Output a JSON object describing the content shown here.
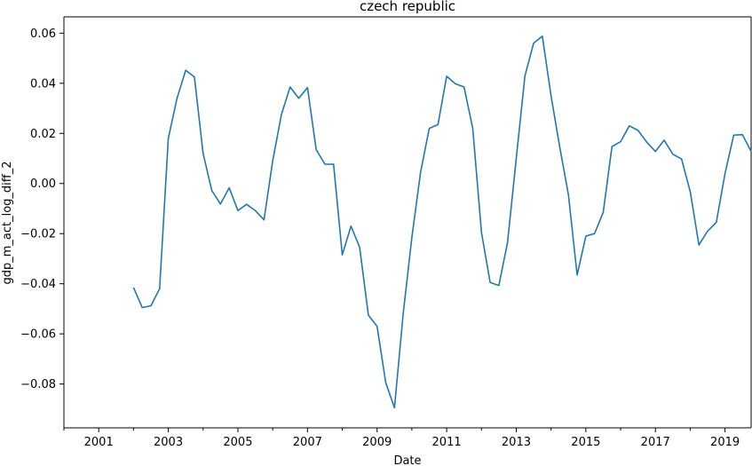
{
  "chart_data": {
    "type": "line",
    "title": "czech republic",
    "xlabel": "Date",
    "ylabel": "gdp_m_act_log_diff_2",
    "xlim": [
      2000.0,
      2019.75
    ],
    "ylim": [
      -0.0975,
      0.0665
    ],
    "grid": false,
    "legend": "none",
    "line_color": "#1f77b4",
    "x_ticks": [
      {
        "value": 2001,
        "label": "2001"
      },
      {
        "value": 2003,
        "label": "2003"
      },
      {
        "value": 2005,
        "label": "2005"
      },
      {
        "value": 2007,
        "label": "2007"
      },
      {
        "value": 2009,
        "label": "2009"
      },
      {
        "value": 2011,
        "label": "2011"
      },
      {
        "value": 2013,
        "label": "2013"
      },
      {
        "value": 2015,
        "label": "2015"
      },
      {
        "value": 2017,
        "label": "2017"
      },
      {
        "value": 2019,
        "label": "2019"
      }
    ],
    "y_ticks": [
      {
        "value": 0.06,
        "label": "0.06"
      },
      {
        "value": 0.04,
        "label": "0.04"
      },
      {
        "value": 0.02,
        "label": "0.02"
      },
      {
        "value": 0.0,
        "label": "0.00"
      },
      {
        "value": -0.02,
        "label": "−0.02"
      },
      {
        "value": -0.04,
        "label": "−0.04"
      },
      {
        "value": -0.06,
        "label": "−0.06"
      },
      {
        "value": -0.08,
        "label": "−0.08"
      }
    ],
    "series": [
      {
        "x": [
          "2002Q1",
          "2002Q2",
          "2002Q3",
          "2002Q4",
          "2003Q1",
          "2003Q2",
          "2003Q3",
          "2003Q4",
          "2004Q1",
          "2004Q2",
          "2004Q3",
          "2004Q4",
          "2005Q1",
          "2005Q2",
          "2005Q3",
          "2005Q4",
          "2006Q1",
          "2006Q2",
          "2006Q3",
          "2006Q4",
          "2007Q1",
          "2007Q2",
          "2007Q3",
          "2007Q4",
          "2008Q1",
          "2008Q2",
          "2008Q3",
          "2008Q4",
          "2009Q1",
          "2009Q2",
          "2009Q3",
          "2009Q4",
          "2010Q1",
          "2010Q2",
          "2010Q3",
          "2010Q4",
          "2011Q1",
          "2011Q2",
          "2011Q3",
          "2011Q4",
          "2012Q1",
          "2012Q2",
          "2012Q3",
          "2012Q4",
          "2013Q1",
          "2013Q2",
          "2013Q3",
          "2013Q4",
          "2014Q1",
          "2014Q2",
          "2014Q3",
          "2014Q4",
          "2015Q1",
          "2015Q2",
          "2015Q3",
          "2015Q4",
          "2016Q1",
          "2016Q2",
          "2016Q3",
          "2016Q4",
          "2017Q1",
          "2017Q2",
          "2017Q3",
          "2017Q4",
          "2018Q1",
          "2018Q2",
          "2018Q3",
          "2018Q4",
          "2019Q1",
          "2019Q2",
          "2019Q3",
          "2019Q4"
        ],
        "values": [
          -0.0415,
          -0.0495,
          -0.0488,
          -0.042,
          0.018,
          0.034,
          0.0452,
          0.0425,
          0.012,
          -0.0028,
          -0.0082,
          -0.0017,
          -0.0108,
          -0.0083,
          -0.0108,
          -0.0145,
          0.009,
          0.0275,
          0.0385,
          0.034,
          0.0383,
          0.0135,
          0.0077,
          0.0077,
          -0.0285,
          -0.017,
          -0.0255,
          -0.0525,
          -0.057,
          -0.0795,
          -0.0895,
          -0.052,
          -0.0215,
          0.0045,
          0.022,
          0.0235,
          0.0428,
          0.0398,
          0.0385,
          0.022,
          -0.0195,
          -0.0395,
          -0.0407,
          -0.0235,
          0.01,
          0.043,
          0.056,
          0.0588,
          0.035,
          0.0145,
          -0.0045,
          -0.0365,
          -0.021,
          -0.02,
          -0.0115,
          0.0147,
          0.0167,
          0.023,
          0.0212,
          0.0165,
          0.0128,
          0.0173,
          0.0117,
          0.0098,
          -0.0032,
          -0.0245,
          -0.019,
          -0.0155,
          0.004,
          0.0193,
          0.0195,
          0.0128
        ]
      }
    ]
  }
}
